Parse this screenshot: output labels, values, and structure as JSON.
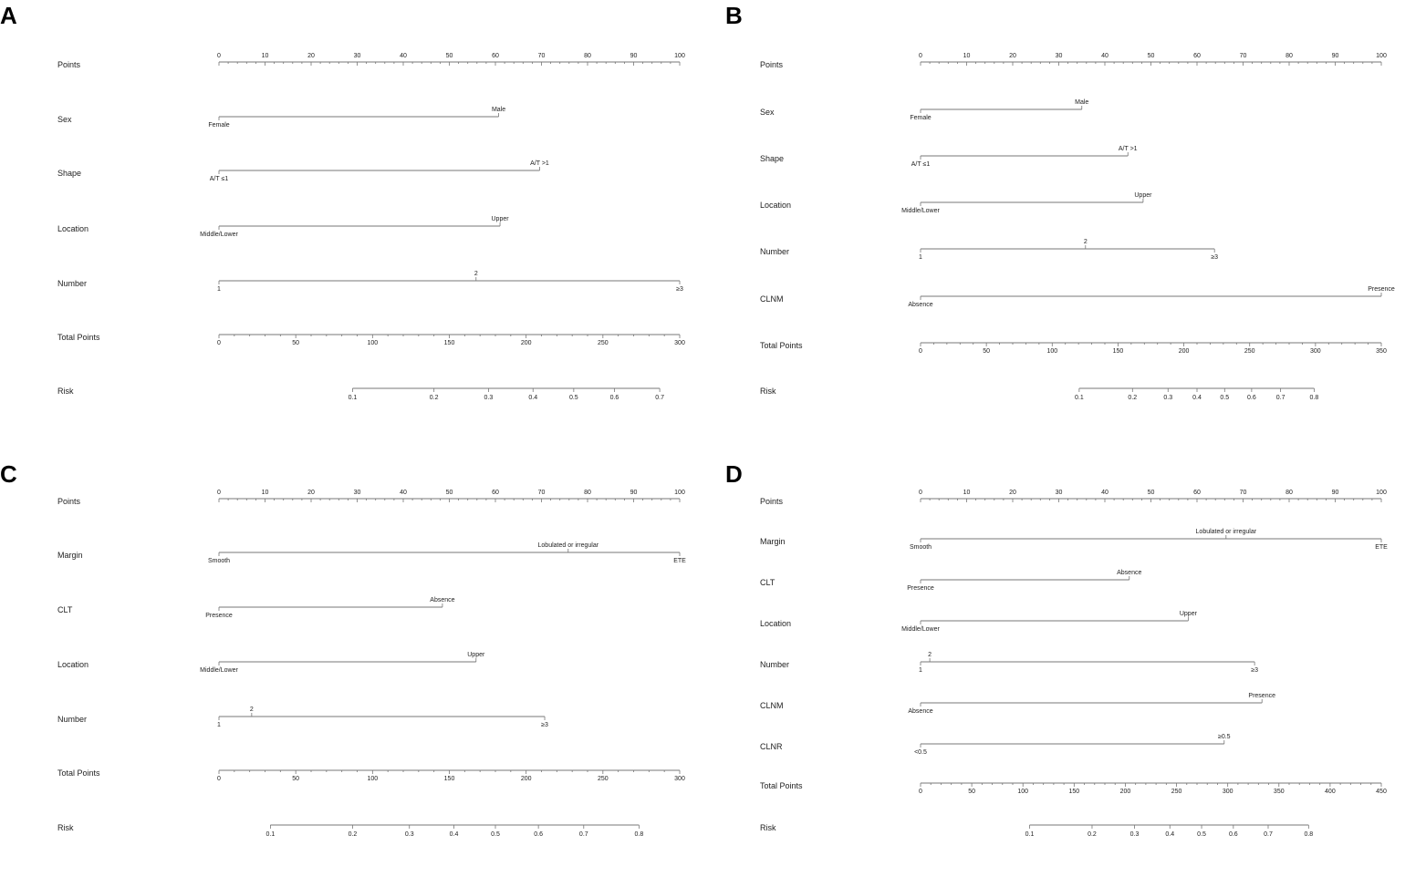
{
  "chart_data": [
    {
      "panel": "A",
      "type": "nomogram",
      "scales": [
        {
          "label": "Points",
          "kind": "axis",
          "min": 0,
          "max": 100,
          "major": 10,
          "minor": 2,
          "ticks": [
            "0",
            "10",
            "20",
            "30",
            "40",
            "50",
            "60",
            "70",
            "80",
            "90",
            "100"
          ]
        },
        {
          "label": "Sex",
          "kind": "variable",
          "levels": [
            {
              "label": "Female",
              "points": 0,
              "pos": "below"
            },
            {
              "label": "Male",
              "points": 60.7,
              "pos": "above"
            }
          ]
        },
        {
          "label": "Shape",
          "kind": "variable",
          "levels": [
            {
              "label": "A/T ≤1",
              "points": 0,
              "pos": "below"
            },
            {
              "label": "A/T >1",
              "points": 69.6,
              "pos": "above"
            }
          ]
        },
        {
          "label": "Location",
          "kind": "variable",
          "levels": [
            {
              "label": "Middle/Lower",
              "points": 0,
              "pos": "below"
            },
            {
              "label": "Upper",
              "points": 61.0,
              "pos": "above"
            }
          ]
        },
        {
          "label": "Number",
          "kind": "variable",
          "levels": [
            {
              "label": "1",
              "points": 0,
              "pos": "below"
            },
            {
              "label": "2",
              "points": 55.8,
              "pos": "above"
            },
            {
              "label": "≥3",
              "points": 100,
              "pos": "below"
            }
          ]
        },
        {
          "label": "Total Points",
          "kind": "axis",
          "min": 0,
          "max": 300,
          "major": 50,
          "minor": 10,
          "ticks": [
            "0",
            "50",
            "100",
            "150",
            "200",
            "250",
            "300"
          ]
        },
        {
          "label": "Risk",
          "kind": "risk",
          "start": 87.0,
          "end": 287.0,
          "ticks": [
            {
              "label": "0.1",
              "tp": 87.0
            },
            {
              "label": "0.2",
              "tp": 140.0
            },
            {
              "label": "0.3",
              "tp": 175.5
            },
            {
              "label": "0.4",
              "tp": 204.5
            },
            {
              "label": "0.5",
              "tp": 231.0
            },
            {
              "label": "0.6",
              "tp": 257.5
            },
            {
              "label": "0.7",
              "tp": 287.0
            }
          ]
        }
      ]
    },
    {
      "panel": "B",
      "type": "nomogram",
      "scales": [
        {
          "label": "Points",
          "kind": "axis",
          "min": 0,
          "max": 100,
          "major": 10,
          "minor": 2,
          "ticks": [
            "0",
            "10",
            "20",
            "30",
            "40",
            "50",
            "60",
            "70",
            "80",
            "90",
            "100"
          ]
        },
        {
          "label": "Sex",
          "kind": "variable",
          "levels": [
            {
              "label": "Female",
              "points": 0,
              "pos": "below"
            },
            {
              "label": "Male",
              "points": 35.0,
              "pos": "above"
            }
          ]
        },
        {
          "label": "Shape",
          "kind": "variable",
          "levels": [
            {
              "label": "A/T ≤1",
              "points": 0,
              "pos": "below"
            },
            {
              "label": "A/T >1",
              "points": 45.0,
              "pos": "above"
            }
          ]
        },
        {
          "label": "Location",
          "kind": "variable",
          "levels": [
            {
              "label": "Middle/Lower",
              "points": 0,
              "pos": "below"
            },
            {
              "label": "Upper",
              "points": 48.3,
              "pos": "above"
            }
          ]
        },
        {
          "label": "Number",
          "kind": "variable",
          "levels": [
            {
              "label": "1",
              "points": 0,
              "pos": "below"
            },
            {
              "label": "2",
              "points": 35.8,
              "pos": "above"
            },
            {
              "label": "≥3",
              "points": 63.8,
              "pos": "below"
            }
          ]
        },
        {
          "label": "CLNM",
          "kind": "variable",
          "levels": [
            {
              "label": "Absence",
              "points": 0,
              "pos": "below"
            },
            {
              "label": "Presence",
              "points": 100,
              "pos": "above"
            }
          ]
        },
        {
          "label": "Total Points",
          "kind": "axis",
          "min": 0,
          "max": 350,
          "major": 50,
          "minor": 10,
          "ticks": [
            "0",
            "50",
            "100",
            "150",
            "200",
            "250",
            "300",
            "350"
          ]
        },
        {
          "label": "Risk",
          "kind": "risk",
          "start": 120.5,
          "end": 299.0,
          "ticks": [
            {
              "label": "0.1",
              "tp": 120.5
            },
            {
              "label": "0.2",
              "tp": 161.0
            },
            {
              "label": "0.3",
              "tp": 188.0
            },
            {
              "label": "0.4",
              "tp": 210.0
            },
            {
              "label": "0.5",
              "tp": 231.0
            },
            {
              "label": "0.6",
              "tp": 251.5
            },
            {
              "label": "0.7",
              "tp": 273.5
            },
            {
              "label": "0.8",
              "tp": 299.0
            }
          ]
        }
      ]
    },
    {
      "panel": "C",
      "type": "nomogram",
      "scales": [
        {
          "label": "Points",
          "kind": "axis",
          "min": 0,
          "max": 100,
          "major": 10,
          "minor": 2,
          "ticks": [
            "0",
            "10",
            "20",
            "30",
            "40",
            "50",
            "60",
            "70",
            "80",
            "90",
            "100"
          ]
        },
        {
          "label": "Margin",
          "kind": "variable",
          "levels": [
            {
              "label": "Smooth",
              "points": 0,
              "pos": "below"
            },
            {
              "label": "Lobulated or irregular",
              "points": 75.8,
              "pos": "above"
            },
            {
              "label": "ETE",
              "points": 100,
              "pos": "below"
            }
          ]
        },
        {
          "label": "CLT",
          "kind": "variable",
          "levels": [
            {
              "label": "Presence",
              "points": 0,
              "pos": "below"
            },
            {
              "label": "Absence",
              "points": 48.5,
              "pos": "above"
            }
          ]
        },
        {
          "label": "Location",
          "kind": "variable",
          "levels": [
            {
              "label": "Middle/Lower",
              "points": 0,
              "pos": "below"
            },
            {
              "label": "Upper",
              "points": 55.8,
              "pos": "above"
            }
          ]
        },
        {
          "label": "Number",
          "kind": "variable",
          "levels": [
            {
              "label": "1",
              "points": 0,
              "pos": "below"
            },
            {
              "label": "2",
              "points": 7.1,
              "pos": "above"
            },
            {
              "label": "≥3",
              "points": 70.7,
              "pos": "below"
            }
          ]
        },
        {
          "label": "Total Points",
          "kind": "axis",
          "min": 0,
          "max": 300,
          "major": 50,
          "minor": 10,
          "ticks": [
            "0",
            "50",
            "100",
            "150",
            "200",
            "250",
            "300"
          ]
        },
        {
          "label": "Risk",
          "kind": "risk",
          "start": 33.5,
          "end": 273.5,
          "ticks": [
            {
              "label": "0.1",
              "tp": 33.5
            },
            {
              "label": "0.2",
              "tp": 87.0
            },
            {
              "label": "0.3",
              "tp": 124.0
            },
            {
              "label": "0.4",
              "tp": 153.0
            },
            {
              "label": "0.5",
              "tp": 180.0
            },
            {
              "label": "0.6",
              "tp": 208.0
            },
            {
              "label": "0.7",
              "tp": 237.5
            },
            {
              "label": "0.8",
              "tp": 273.5
            }
          ]
        }
      ]
    },
    {
      "panel": "D",
      "type": "nomogram",
      "scales": [
        {
          "label": "Points",
          "kind": "axis",
          "min": 0,
          "max": 100,
          "major": 10,
          "minor": 2,
          "ticks": [
            "0",
            "10",
            "20",
            "30",
            "40",
            "50",
            "60",
            "70",
            "80",
            "90",
            "100"
          ]
        },
        {
          "label": "Margin",
          "kind": "variable",
          "levels": [
            {
              "label": "Smooth",
              "points": 0,
              "pos": "below"
            },
            {
              "label": "Lobulated or irregular",
              "points": 66.3,
              "pos": "above"
            },
            {
              "label": "ETE",
              "points": 100,
              "pos": "below"
            }
          ]
        },
        {
          "label": "CLT",
          "kind": "variable",
          "levels": [
            {
              "label": "Presence",
              "points": 0,
              "pos": "below"
            },
            {
              "label": "Absence",
              "points": 45.3,
              "pos": "above"
            }
          ]
        },
        {
          "label": "Location",
          "kind": "variable",
          "levels": [
            {
              "label": "Middle/Lower",
              "points": 0,
              "pos": "below"
            },
            {
              "label": "Upper",
              "points": 58.1,
              "pos": "above"
            }
          ]
        },
        {
          "label": "Number",
          "kind": "variable",
          "levels": [
            {
              "label": "1",
              "points": 0,
              "pos": "below"
            },
            {
              "label": "2",
              "points": 2.0,
              "pos": "above"
            },
            {
              "label": "≥3",
              "points": 72.5,
              "pos": "below"
            }
          ]
        },
        {
          "label": "CLNM",
          "kind": "variable",
          "levels": [
            {
              "label": "Absence",
              "points": 0,
              "pos": "below"
            },
            {
              "label": "Presence",
              "points": 74.1,
              "pos": "above"
            }
          ]
        },
        {
          "label": "CLNR",
          "kind": "variable",
          "levels": [
            {
              "label": "<0.5",
              "points": 0,
              "pos": "below"
            },
            {
              "label": "≥0.5",
              "points": 65.9,
              "pos": "above"
            }
          ]
        },
        {
          "label": "Total Points",
          "kind": "axis",
          "min": 0,
          "max": 450,
          "major": 50,
          "minor": 10,
          "ticks": [
            "0",
            "50",
            "100",
            "150",
            "200",
            "250",
            "300",
            "350",
            "400",
            "450"
          ]
        },
        {
          "label": "Risk",
          "kind": "risk",
          "start": 106.5,
          "end": 379.0,
          "ticks": [
            {
              "label": "0.1",
              "tp": 106.5
            },
            {
              "label": "0.2",
              "tp": 167.5
            },
            {
              "label": "0.3",
              "tp": 209.0
            },
            {
              "label": "0.4",
              "tp": 243.5
            },
            {
              "label": "0.5",
              "tp": 274.5
            },
            {
              "label": "0.6",
              "tp": 305.5
            },
            {
              "label": "0.7",
              "tp": 339.5
            },
            {
              "label": "0.8",
              "tp": 379.0
            }
          ]
        }
      ]
    }
  ]
}
